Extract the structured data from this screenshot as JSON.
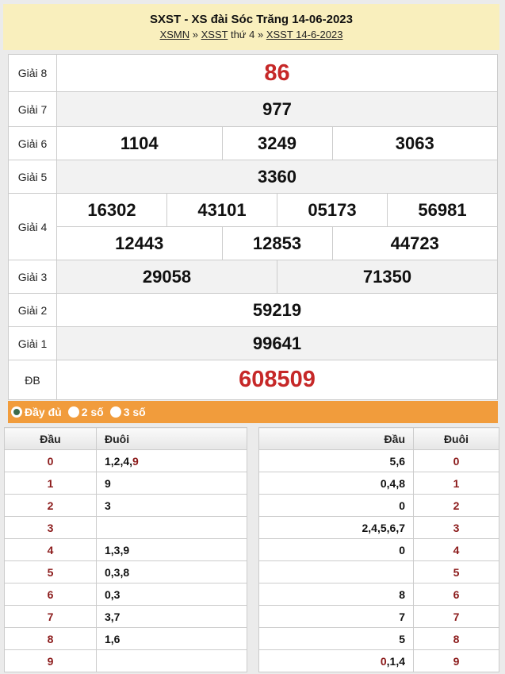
{
  "header": {
    "title": "SXST - XS đài Sóc Trăng 14-06-2023",
    "crumbs": [
      "XSMN",
      "XSST",
      "thứ 4",
      "XSST 14-6-2023"
    ],
    "sep": "»"
  },
  "prizes": {
    "g8": {
      "label": "Giải 8",
      "values": [
        "86"
      ]
    },
    "g7": {
      "label": "Giải 7",
      "values": [
        "977"
      ]
    },
    "g6": {
      "label": "Giải 6",
      "values": [
        "1104",
        "3249",
        "3063"
      ]
    },
    "g5": {
      "label": "Giải 5",
      "values": [
        "3360"
      ]
    },
    "g4": {
      "label": "Giải 4",
      "values": [
        "16302",
        "43101",
        "05173",
        "56981",
        "12443",
        "12853",
        "44723"
      ]
    },
    "g3": {
      "label": "Giải 3",
      "values": [
        "29058",
        "71350"
      ]
    },
    "g2": {
      "label": "Giải 2",
      "values": [
        "59219"
      ]
    },
    "g1": {
      "label": "Giải 1",
      "values": [
        "99641"
      ]
    },
    "db": {
      "label": "ĐB",
      "values": [
        "608509"
      ]
    }
  },
  "options": {
    "full": "Đầy đủ",
    "two": "2 số",
    "three": "3 số",
    "selected": "full"
  },
  "colors": {
    "accent": "#f19c3c",
    "red": "#c62828",
    "header_bg": "#f9efbd"
  },
  "dau_table": {
    "h_dau": "Đầu",
    "h_duoi": "Đuôi",
    "rows": [
      {
        "k": "0",
        "v": [
          {
            "t": "1,2,4,"
          },
          {
            "t": "9",
            "hl": true
          }
        ]
      },
      {
        "k": "1",
        "v": [
          {
            "t": "9"
          }
        ]
      },
      {
        "k": "2",
        "v": [
          {
            "t": "3"
          }
        ]
      },
      {
        "k": "3",
        "v": []
      },
      {
        "k": "4",
        "v": [
          {
            "t": "1,3,9"
          }
        ]
      },
      {
        "k": "5",
        "v": [
          {
            "t": "0,3,8"
          }
        ]
      },
      {
        "k": "6",
        "v": [
          {
            "t": "0,3"
          }
        ]
      },
      {
        "k": "7",
        "v": [
          {
            "t": "3,7"
          }
        ]
      },
      {
        "k": "8",
        "v": [
          {
            "t": "1,6"
          }
        ]
      },
      {
        "k": "9",
        "v": []
      }
    ]
  },
  "duoi_table": {
    "h_dau": "Đầu",
    "h_duoi": "Đuôi",
    "rows": [
      {
        "k": "0",
        "v": [
          {
            "t": "5,6"
          }
        ]
      },
      {
        "k": "1",
        "v": [
          {
            "t": "0,4,8"
          }
        ]
      },
      {
        "k": "2",
        "v": [
          {
            "t": "0"
          }
        ]
      },
      {
        "k": "3",
        "v": [
          {
            "t": "2,4,5,6,7"
          }
        ]
      },
      {
        "k": "4",
        "v": [
          {
            "t": "0"
          }
        ]
      },
      {
        "k": "5",
        "v": []
      },
      {
        "k": "6",
        "v": [
          {
            "t": "8"
          }
        ]
      },
      {
        "k": "7",
        "v": [
          {
            "t": "7"
          }
        ]
      },
      {
        "k": "8",
        "v": [
          {
            "t": "5"
          }
        ]
      },
      {
        "k": "9",
        "v": [
          {
            "t": "0",
            "hl": true
          },
          {
            "t": ",1,4"
          }
        ]
      }
    ]
  }
}
